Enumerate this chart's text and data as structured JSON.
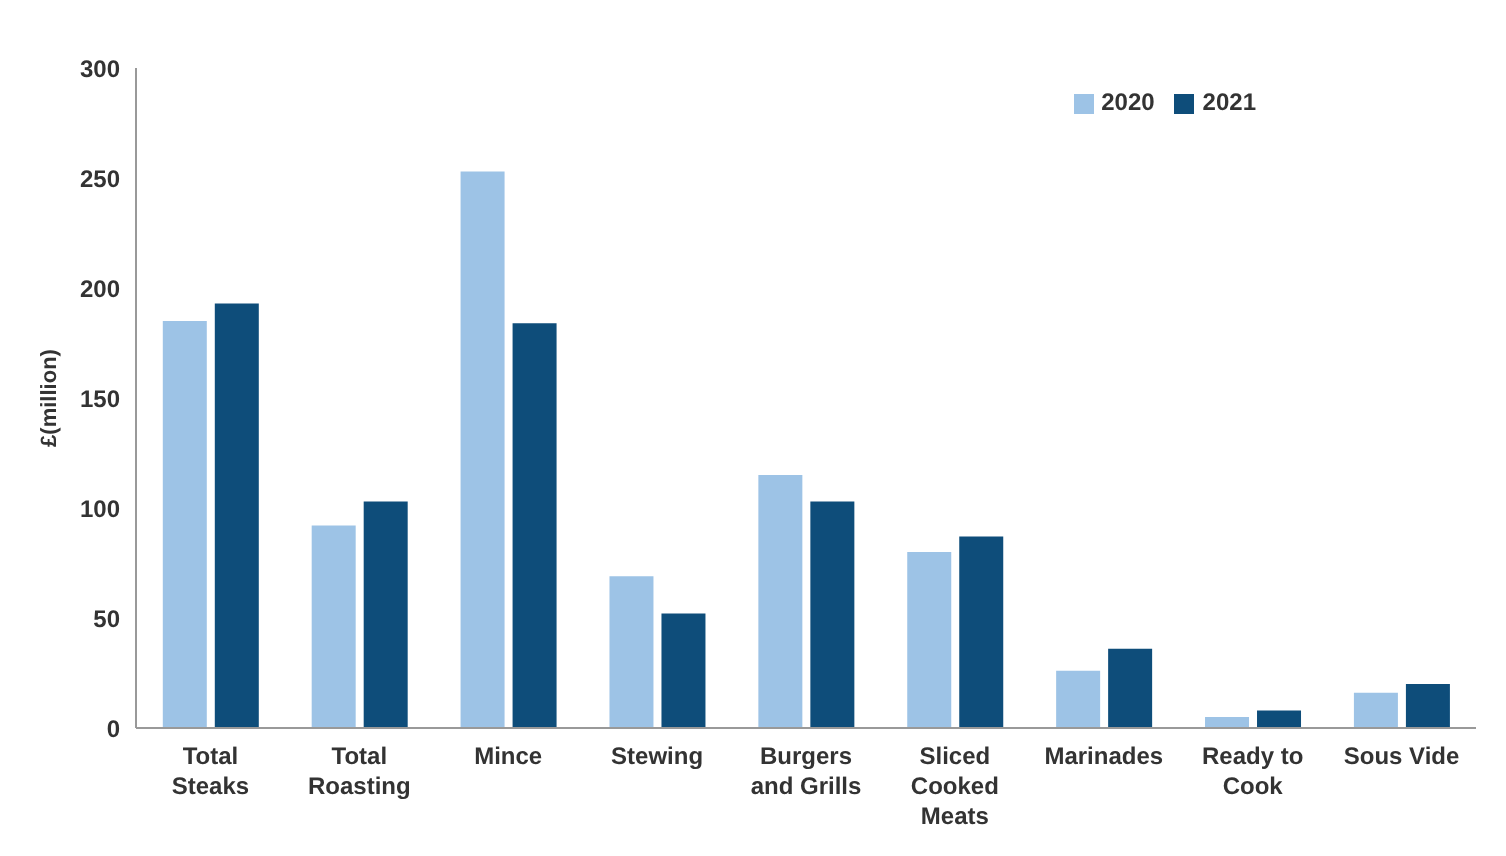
{
  "chart_data": {
    "type": "bar",
    "ylabel": "£(million)",
    "categories": [
      "Total Steaks",
      "Total Roasting",
      "Mince",
      "Stewing",
      "Burgers and Grills",
      "Sliced Cooked Meats",
      "Marinades",
      "Ready to Cook",
      "Sous Vide"
    ],
    "series": [
      {
        "name": "2020",
        "color": "#9dc3e6",
        "values": [
          185,
          92,
          253,
          69,
          115,
          80,
          26,
          5,
          16
        ]
      },
      {
        "name": "2021",
        "color": "#0e4d7a",
        "values": [
          193,
          103,
          184,
          52,
          103,
          87,
          36,
          8,
          20
        ]
      }
    ],
    "ylim": [
      0,
      300
    ],
    "yticks": [
      0,
      50,
      100,
      150,
      200,
      250,
      300
    ],
    "grid": false,
    "legend": "top right"
  }
}
